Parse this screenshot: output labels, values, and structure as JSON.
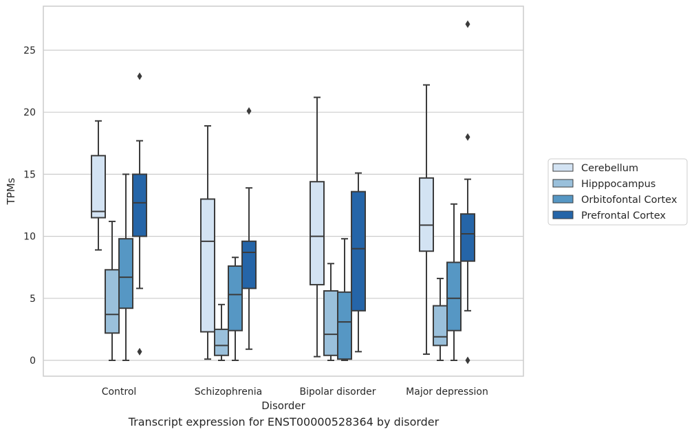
{
  "caption": "Transcript expression for ENST00000528364 by disorder",
  "chart_data": {
    "type": "box",
    "xlabel": "Disorder",
    "ylabel": "TPMs",
    "ylim": [
      -1.3,
      28.5
    ],
    "yticks": [
      0,
      5,
      10,
      15,
      20,
      25
    ],
    "grid": "horizontal",
    "legend_position": "right",
    "categories": [
      "Control",
      "Schizophrenia",
      "Bipolar disorder",
      "Major depression"
    ],
    "series": [
      {
        "name": "Cerebellum",
        "color": "#d3e3f3",
        "boxes": [
          {
            "whisker_low": 8.9,
            "q1": 11.5,
            "median": 12.0,
            "q3": 16.5,
            "whisker_high": 19.3,
            "outliers": []
          },
          {
            "whisker_low": 0.1,
            "q1": 2.3,
            "median": 9.6,
            "q3": 13.0,
            "whisker_high": 18.9,
            "outliers": []
          },
          {
            "whisker_low": 0.3,
            "q1": 6.1,
            "median": 10.0,
            "q3": 14.4,
            "whisker_high": 21.2,
            "outliers": []
          },
          {
            "whisker_low": 0.5,
            "q1": 8.8,
            "median": 10.9,
            "q3": 14.7,
            "whisker_high": 22.2,
            "outliers": []
          }
        ]
      },
      {
        "name": "Hipppocampus",
        "color": "#9ac0db",
        "boxes": [
          {
            "whisker_low": 0.0,
            "q1": 2.2,
            "median": 3.7,
            "q3": 7.3,
            "whisker_high": 11.2,
            "outliers": []
          },
          {
            "whisker_low": 0.0,
            "q1": 0.4,
            "median": 1.2,
            "q3": 2.5,
            "whisker_high": 4.5,
            "outliers": []
          },
          {
            "whisker_low": 0.0,
            "q1": 0.4,
            "median": 2.1,
            "q3": 5.6,
            "whisker_high": 7.8,
            "outliers": []
          },
          {
            "whisker_low": 0.0,
            "q1": 1.2,
            "median": 1.9,
            "q3": 4.4,
            "whisker_high": 6.6,
            "outliers": []
          }
        ]
      },
      {
        "name": "Orbitofontal Cortex",
        "color": "#5697c4",
        "boxes": [
          {
            "whisker_low": 0.0,
            "q1": 4.2,
            "median": 6.7,
            "q3": 9.8,
            "whisker_high": 15.0,
            "outliers": []
          },
          {
            "whisker_low": 0.0,
            "q1": 2.4,
            "median": 5.3,
            "q3": 7.6,
            "whisker_high": 8.3,
            "outliers": []
          },
          {
            "whisker_low": 0.0,
            "q1": 0.1,
            "median": 3.1,
            "q3": 5.5,
            "whisker_high": 9.8,
            "outliers": []
          },
          {
            "whisker_low": 0.0,
            "q1": 2.4,
            "median": 5.0,
            "q3": 7.9,
            "whisker_high": 12.6,
            "outliers": []
          }
        ]
      },
      {
        "name": "Prefrontal Cortex",
        "color": "#2565a8",
        "boxes": [
          {
            "whisker_low": 5.8,
            "q1": 10.0,
            "median": 12.7,
            "q3": 15.0,
            "whisker_high": 17.7,
            "outliers": [
              22.9,
              0.7
            ]
          },
          {
            "whisker_low": 0.9,
            "q1": 5.8,
            "median": 8.7,
            "q3": 9.6,
            "whisker_high": 13.9,
            "outliers": [
              20.1
            ]
          },
          {
            "whisker_low": 0.7,
            "q1": 4.0,
            "median": 9.0,
            "q3": 13.6,
            "whisker_high": 15.1,
            "outliers": []
          },
          {
            "whisker_low": 4.0,
            "q1": 8.0,
            "median": 10.2,
            "q3": 11.8,
            "whisker_high": 14.6,
            "outliers": [
              27.1,
              18.0,
              0.0
            ]
          }
        ]
      }
    ]
  }
}
